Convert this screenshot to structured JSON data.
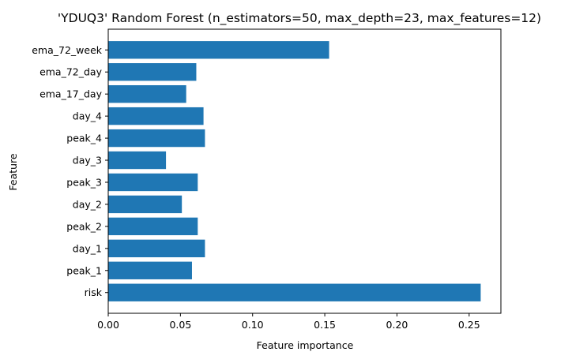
{
  "chart_data": {
    "type": "bar",
    "orientation": "horizontal",
    "title": "'YDUQ3' Random Forest (n_estimators=50, max_depth=23, max_features=12)",
    "xlabel": "Feature importance",
    "ylabel": "Feature",
    "xlim": [
      0,
      0.272
    ],
    "xticks": [
      0.0,
      0.05,
      0.1,
      0.15,
      0.2,
      0.25
    ],
    "xtick_labels": [
      "0.00",
      "0.05",
      "0.10",
      "0.15",
      "0.20",
      "0.25"
    ],
    "categories": [
      "risk",
      "peak_1",
      "day_1",
      "peak_2",
      "day_2",
      "peak_3",
      "day_3",
      "peak_4",
      "day_4",
      "ema_17_day",
      "ema_72_day",
      "ema_72_week"
    ],
    "values": [
      0.258,
      0.058,
      0.067,
      0.062,
      0.051,
      0.062,
      0.04,
      0.067,
      0.066,
      0.054,
      0.061,
      0.153
    ],
    "bar_color": "#1f77b4",
    "grid": false,
    "legend": "none"
  }
}
